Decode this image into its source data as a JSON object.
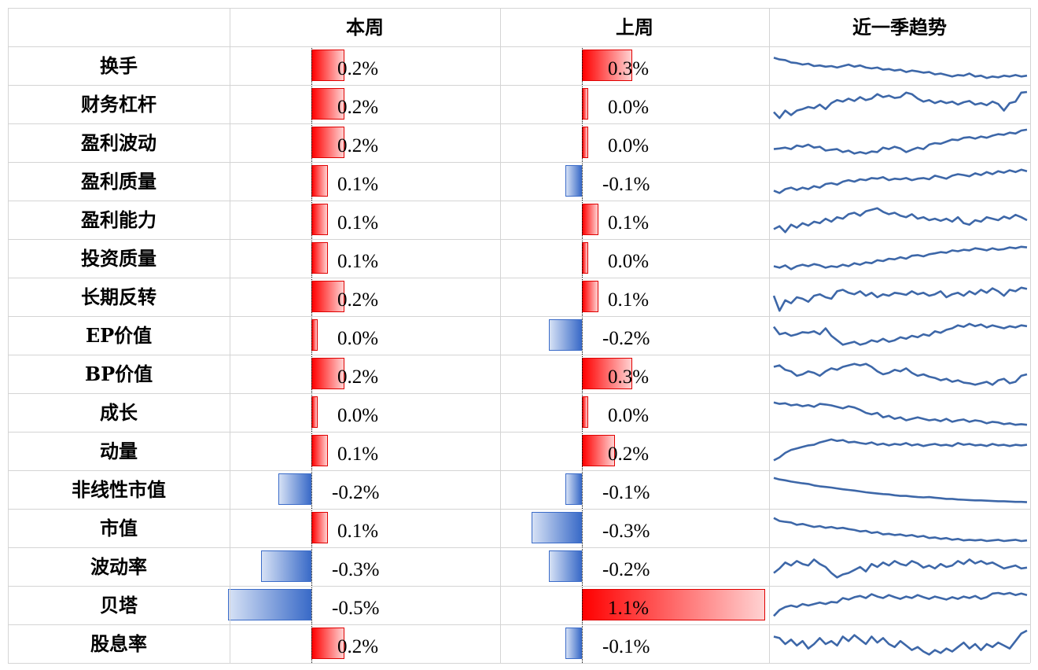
{
  "headers": {
    "col1": "",
    "col2": "本周",
    "col3": "上周",
    "col4": "近一季趋势"
  },
  "colors": {
    "positive": "#ff0000",
    "negative": "#3a6bc8",
    "sparkline": "#3d67a8"
  },
  "chart_data": {
    "type": "table",
    "value_unit": "%",
    "columns": [
      "本周",
      "上周",
      "近一季趋势"
    ],
    "rows": [
      {
        "factor": "换手",
        "this_week": 0.2,
        "this_week_label": "0.2%",
        "last_week": 0.3,
        "last_week_label": "0.3%",
        "trend": [
          0.78,
          0.72,
          0.7,
          0.62,
          0.6,
          0.55,
          0.58,
          0.5,
          0.52,
          0.48,
          0.5,
          0.45,
          0.5,
          0.55,
          0.48,
          0.52,
          0.45,
          0.42,
          0.45,
          0.38,
          0.4,
          0.35,
          0.38,
          0.3,
          0.35,
          0.32,
          0.28,
          0.3,
          0.22,
          0.25,
          0.2,
          0.15,
          0.2,
          0.18,
          0.25,
          0.15,
          0.18,
          0.1,
          0.15,
          0.12,
          0.18,
          0.15,
          0.2,
          0.15,
          0.18
        ]
      },
      {
        "factor": "财务杠杆",
        "this_week": 0.2,
        "this_week_label": "0.2%",
        "last_week": 0.0,
        "last_week_label": "0.0%",
        "trend": [
          0.25,
          0.05,
          0.3,
          0.15,
          0.3,
          0.35,
          0.42,
          0.38,
          0.5,
          0.35,
          0.55,
          0.65,
          0.6,
          0.7,
          0.62,
          0.75,
          0.65,
          0.7,
          0.85,
          0.75,
          0.8,
          0.72,
          0.75,
          0.9,
          0.85,
          0.7,
          0.6,
          0.65,
          0.55,
          0.62,
          0.55,
          0.6,
          0.5,
          0.58,
          0.62,
          0.5,
          0.55,
          0.48,
          0.6,
          0.52,
          0.3,
          0.55,
          0.6,
          0.9,
          0.92
        ]
      },
      {
        "factor": "盈利波动",
        "this_week": 0.2,
        "this_week_label": "0.2%",
        "last_week": 0.0,
        "last_week_label": "0.0%",
        "trend": [
          0.3,
          0.32,
          0.35,
          0.3,
          0.42,
          0.38,
          0.45,
          0.35,
          0.38,
          0.25,
          0.28,
          0.3,
          0.2,
          0.25,
          0.15,
          0.2,
          0.15,
          0.22,
          0.2,
          0.35,
          0.3,
          0.38,
          0.32,
          0.2,
          0.28,
          0.35,
          0.3,
          0.45,
          0.5,
          0.48,
          0.55,
          0.62,
          0.6,
          0.68,
          0.7,
          0.65,
          0.72,
          0.68,
          0.75,
          0.8,
          0.78,
          0.85,
          0.82,
          0.92,
          0.95
        ]
      },
      {
        "factor": "盈利质量",
        "this_week": 0.1,
        "this_week_label": "0.1%",
        "last_week": -0.1,
        "last_week_label": "-0.1%",
        "trend": [
          0.2,
          0.12,
          0.25,
          0.3,
          0.22,
          0.3,
          0.25,
          0.35,
          0.3,
          0.42,
          0.45,
          0.4,
          0.5,
          0.55,
          0.5,
          0.58,
          0.55,
          0.62,
          0.6,
          0.65,
          0.55,
          0.6,
          0.58,
          0.62,
          0.55,
          0.6,
          0.62,
          0.58,
          0.7,
          0.65,
          0.6,
          0.7,
          0.75,
          0.72,
          0.68,
          0.78,
          0.72,
          0.82,
          0.75,
          0.85,
          0.8,
          0.88,
          0.82,
          0.9,
          0.85
        ]
      },
      {
        "factor": "盈利能力",
        "this_week": 0.1,
        "this_week_label": "0.1%",
        "last_week": 0.1,
        "last_week_label": "0.1%",
        "trend": [
          0.2,
          0.3,
          0.1,
          0.35,
          0.25,
          0.4,
          0.32,
          0.45,
          0.4,
          0.55,
          0.45,
          0.6,
          0.55,
          0.7,
          0.75,
          0.65,
          0.8,
          0.85,
          0.9,
          0.78,
          0.7,
          0.75,
          0.65,
          0.6,
          0.7,
          0.55,
          0.6,
          0.5,
          0.55,
          0.48,
          0.55,
          0.45,
          0.6,
          0.4,
          0.35,
          0.5,
          0.45,
          0.6,
          0.55,
          0.5,
          0.62,
          0.55,
          0.68,
          0.6,
          0.5
        ]
      },
      {
        "factor": "投资质量",
        "this_week": 0.1,
        "this_week_label": "0.1%",
        "last_week": 0.0,
        "last_week_label": "0.0%",
        "trend": [
          0.25,
          0.2,
          0.28,
          0.15,
          0.25,
          0.3,
          0.25,
          0.32,
          0.28,
          0.2,
          0.25,
          0.22,
          0.3,
          0.25,
          0.35,
          0.3,
          0.38,
          0.35,
          0.45,
          0.42,
          0.5,
          0.48,
          0.55,
          0.5,
          0.6,
          0.62,
          0.58,
          0.65,
          0.68,
          0.72,
          0.7,
          0.78,
          0.75,
          0.8,
          0.78,
          0.85,
          0.82,
          0.78,
          0.85,
          0.8,
          0.82,
          0.88,
          0.85,
          0.9,
          0.88
        ]
      },
      {
        "factor": "长期反转",
        "this_week": 0.2,
        "this_week_label": "0.2%",
        "last_week": 0.1,
        "last_week_label": "0.1%",
        "trend": [
          0.55,
          0.05,
          0.4,
          0.3,
          0.5,
          0.45,
          0.35,
          0.55,
          0.6,
          0.5,
          0.45,
          0.7,
          0.75,
          0.65,
          0.6,
          0.7,
          0.55,
          0.65,
          0.5,
          0.6,
          0.55,
          0.65,
          0.62,
          0.58,
          0.7,
          0.6,
          0.65,
          0.55,
          0.6,
          0.7,
          0.5,
          0.6,
          0.65,
          0.55,
          0.7,
          0.6,
          0.75,
          0.65,
          0.8,
          0.7,
          0.55,
          0.75,
          0.7,
          0.82,
          0.78
        ]
      },
      {
        "factor": "EP价值",
        "this_week": 0.0,
        "this_week_label": "0.0%",
        "last_week": -0.2,
        "last_week_label": "-0.2%",
        "trend": [
          0.8,
          0.55,
          0.6,
          0.5,
          0.55,
          0.62,
          0.6,
          0.65,
          0.55,
          0.75,
          0.5,
          0.35,
          0.2,
          0.25,
          0.3,
          0.2,
          0.25,
          0.35,
          0.3,
          0.4,
          0.3,
          0.35,
          0.45,
          0.4,
          0.5,
          0.45,
          0.55,
          0.5,
          0.65,
          0.6,
          0.7,
          0.75,
          0.85,
          0.8,
          0.9,
          0.82,
          0.88,
          0.78,
          0.85,
          0.8,
          0.75,
          0.82,
          0.78,
          0.85,
          0.82
        ]
      },
      {
        "factor": "BP价值",
        "this_week": 0.2,
        "this_week_label": "0.2%",
        "last_week": 0.3,
        "last_week_label": "0.3%",
        "trend": [
          0.75,
          0.8,
          0.65,
          0.6,
          0.45,
          0.5,
          0.6,
          0.55,
          0.45,
          0.6,
          0.7,
          0.65,
          0.75,
          0.8,
          0.85,
          0.8,
          0.85,
          0.75,
          0.6,
          0.5,
          0.55,
          0.65,
          0.6,
          0.7,
          0.55,
          0.45,
          0.5,
          0.42,
          0.38,
          0.3,
          0.35,
          0.25,
          0.3,
          0.22,
          0.2,
          0.15,
          0.2,
          0.25,
          0.15,
          0.3,
          0.35,
          0.2,
          0.25,
          0.45,
          0.5
        ]
      },
      {
        "factor": "成长",
        "this_week": 0.0,
        "this_week_label": "0.0%",
        "last_week": 0.0,
        "last_week_label": "0.0%",
        "trend": [
          0.85,
          0.8,
          0.82,
          0.75,
          0.78,
          0.72,
          0.76,
          0.7,
          0.8,
          0.78,
          0.75,
          0.7,
          0.65,
          0.72,
          0.68,
          0.6,
          0.5,
          0.45,
          0.5,
          0.35,
          0.4,
          0.3,
          0.35,
          0.25,
          0.3,
          0.35,
          0.3,
          0.25,
          0.28,
          0.22,
          0.3,
          0.2,
          0.25,
          0.28,
          0.2,
          0.25,
          0.22,
          0.15,
          0.2,
          0.18,
          0.12,
          0.15,
          0.1,
          0.12,
          0.1
        ]
      },
      {
        "factor": "动量",
        "this_week": 0.1,
        "this_week_label": "0.1%",
        "last_week": 0.2,
        "last_week_label": "0.2%",
        "trend": [
          0.2,
          0.3,
          0.45,
          0.55,
          0.6,
          0.65,
          0.7,
          0.72,
          0.8,
          0.85,
          0.9,
          0.85,
          0.88,
          0.8,
          0.82,
          0.78,
          0.75,
          0.8,
          0.72,
          0.76,
          0.7,
          0.75,
          0.72,
          0.78,
          0.7,
          0.74,
          0.68,
          0.72,
          0.75,
          0.7,
          0.72,
          0.68,
          0.78,
          0.72,
          0.75,
          0.7,
          0.72,
          0.68,
          0.75,
          0.7,
          0.72,
          0.68,
          0.72,
          0.7,
          0.72
        ]
      },
      {
        "factor": "非线性市值",
        "this_week": -0.2,
        "this_week_label": "-0.2%",
        "last_week": -0.1,
        "last_week_label": "-0.1%",
        "trend": [
          0.9,
          0.85,
          0.82,
          0.78,
          0.75,
          0.72,
          0.7,
          0.65,
          0.62,
          0.6,
          0.58,
          0.55,
          0.52,
          0.5,
          0.48,
          0.45,
          0.42,
          0.4,
          0.38,
          0.36,
          0.35,
          0.32,
          0.3,
          0.3,
          0.28,
          0.26,
          0.25,
          0.26,
          0.24,
          0.22,
          0.2,
          0.2,
          0.18,
          0.17,
          0.16,
          0.15,
          0.15,
          0.14,
          0.13,
          0.12,
          0.12,
          0.11,
          0.1,
          0.1,
          0.09
        ]
      },
      {
        "factor": "市值",
        "this_week": 0.1,
        "this_week_label": "0.1%",
        "last_week": -0.3,
        "last_week_label": "-0.3%",
        "trend": [
          0.85,
          0.75,
          0.72,
          0.7,
          0.62,
          0.65,
          0.6,
          0.55,
          0.58,
          0.52,
          0.55,
          0.5,
          0.52,
          0.48,
          0.45,
          0.4,
          0.42,
          0.35,
          0.38,
          0.3,
          0.32,
          0.28,
          0.3,
          0.25,
          0.28,
          0.22,
          0.25,
          0.18,
          0.2,
          0.15,
          0.18,
          0.12,
          0.15,
          0.1,
          0.12,
          0.1,
          0.12,
          0.08,
          0.1,
          0.12,
          0.08,
          0.1,
          0.12,
          0.08,
          0.1
        ]
      },
      {
        "factor": "波动率",
        "this_week": -0.3,
        "this_week_label": "-0.3%",
        "last_week": -0.2,
        "last_week_label": "-0.2%",
        "trend": [
          0.3,
          0.45,
          0.65,
          0.55,
          0.7,
          0.6,
          0.55,
          0.75,
          0.6,
          0.5,
          0.3,
          0.15,
          0.25,
          0.3,
          0.4,
          0.5,
          0.35,
          0.6,
          0.5,
          0.65,
          0.55,
          0.7,
          0.6,
          0.55,
          0.7,
          0.62,
          0.48,
          0.55,
          0.45,
          0.6,
          0.5,
          0.55,
          0.7,
          0.6,
          0.75,
          0.62,
          0.7,
          0.6,
          0.65,
          0.55,
          0.45,
          0.5,
          0.55,
          0.45,
          0.48
        ]
      },
      {
        "factor": "贝塔",
        "this_week": -0.5,
        "this_week_label": "-0.5%",
        "last_week": 1.1,
        "last_week_label": "1.1%",
        "trend": [
          0.15,
          0.35,
          0.45,
          0.5,
          0.45,
          0.55,
          0.5,
          0.55,
          0.6,
          0.55,
          0.62,
          0.6,
          0.75,
          0.7,
          0.78,
          0.82,
          0.75,
          0.88,
          0.8,
          0.75,
          0.85,
          0.78,
          0.72,
          0.8,
          0.75,
          0.85,
          0.78,
          0.72,
          0.8,
          0.75,
          0.7,
          0.78,
          0.72,
          0.8,
          0.75,
          0.82,
          0.72,
          0.78,
          0.9,
          0.92,
          0.88,
          0.92,
          0.85,
          0.9,
          0.85
        ]
      },
      {
        "factor": "股息率",
        "this_week": 0.2,
        "this_week_label": "0.2%",
        "last_week": -0.1,
        "last_week_label": "-0.1%",
        "trend": [
          0.75,
          0.7,
          0.5,
          0.65,
          0.45,
          0.6,
          0.35,
          0.5,
          0.7,
          0.5,
          0.6,
          0.45,
          0.75,
          0.6,
          0.8,
          0.65,
          0.5,
          0.75,
          0.55,
          0.7,
          0.5,
          0.4,
          0.6,
          0.45,
          0.3,
          0.4,
          0.25,
          0.15,
          0.3,
          0.2,
          0.35,
          0.25,
          0.4,
          0.55,
          0.35,
          0.5,
          0.3,
          0.5,
          0.4,
          0.55,
          0.45,
          0.35,
          0.6,
          0.85,
          0.95
        ]
      }
    ]
  }
}
